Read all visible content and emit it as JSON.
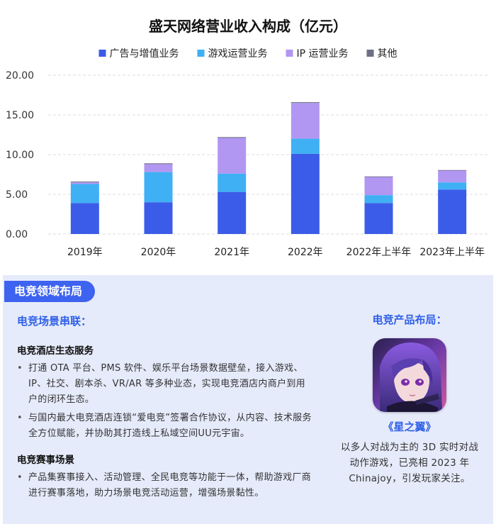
{
  "chart_data": {
    "type": "bar",
    "stacked": true,
    "title": "盛天网络营业收入构成（亿元）",
    "categories": [
      "2019年",
      "2020年",
      "2021年",
      "2022年",
      "2022年上半年",
      "2023年上半年"
    ],
    "series": [
      {
        "name": "广告与增值业务",
        "color": "#3b5ce8",
        "values": [
          3.9,
          4.0,
          5.3,
          10.1,
          3.9,
          5.6
        ]
      },
      {
        "name": "游戏运营业务",
        "color": "#3fb0f4",
        "values": [
          2.4,
          3.8,
          2.3,
          1.9,
          1.0,
          0.9
        ]
      },
      {
        "name": "IP 运营业务",
        "color": "#b197f2",
        "values": [
          0.2,
          1.0,
          4.5,
          4.5,
          2.3,
          1.5
        ]
      },
      {
        "name": "其他",
        "color": "#6e6e88",
        "values": [
          0.1,
          0.1,
          0.1,
          0.1,
          0.05,
          0.05
        ]
      }
    ],
    "yticks": [
      "0.00",
      "5.00",
      "10.00",
      "15.00",
      "20.00"
    ],
    "ylim": [
      0,
      20
    ],
    "grid": true,
    "legend_position": "top"
  },
  "panel": {
    "badge": "电竞领域布局",
    "left": {
      "title": "电竞场景串联：",
      "sections": [
        {
          "title": "电竞酒店生态服务",
          "bullets": [
            "打通 OTA 平台、PMS 软件、娱乐平台场景数据壁垒，接入游戏、IP、社交、剧本杀、VR/AR 等多种业态，实现电竞酒店内商户到用户的闭环生态。",
            "与国内最大电竞酒店连锁“爱电竞”签署合作协议，从内容、技术服务全方位赋能，并协助其打造线上私域空间UU元宇宙。"
          ]
        },
        {
          "title": "电竞赛事场景",
          "bullets": [
            "产品集赛事接入、活动管理、全民电竞等功能于一体，帮助游戏厂商进行赛事落地，助力场景电竞活动运营，增强场景黏性。"
          ]
        }
      ]
    },
    "right": {
      "title": "电竞产品布局：",
      "game_name": "《星之翼》",
      "game_desc": "以多人对战为主的 3D 实时对战动作游戏，已亮相 2023 年 Chinajoy，引发玩家关注。"
    }
  }
}
